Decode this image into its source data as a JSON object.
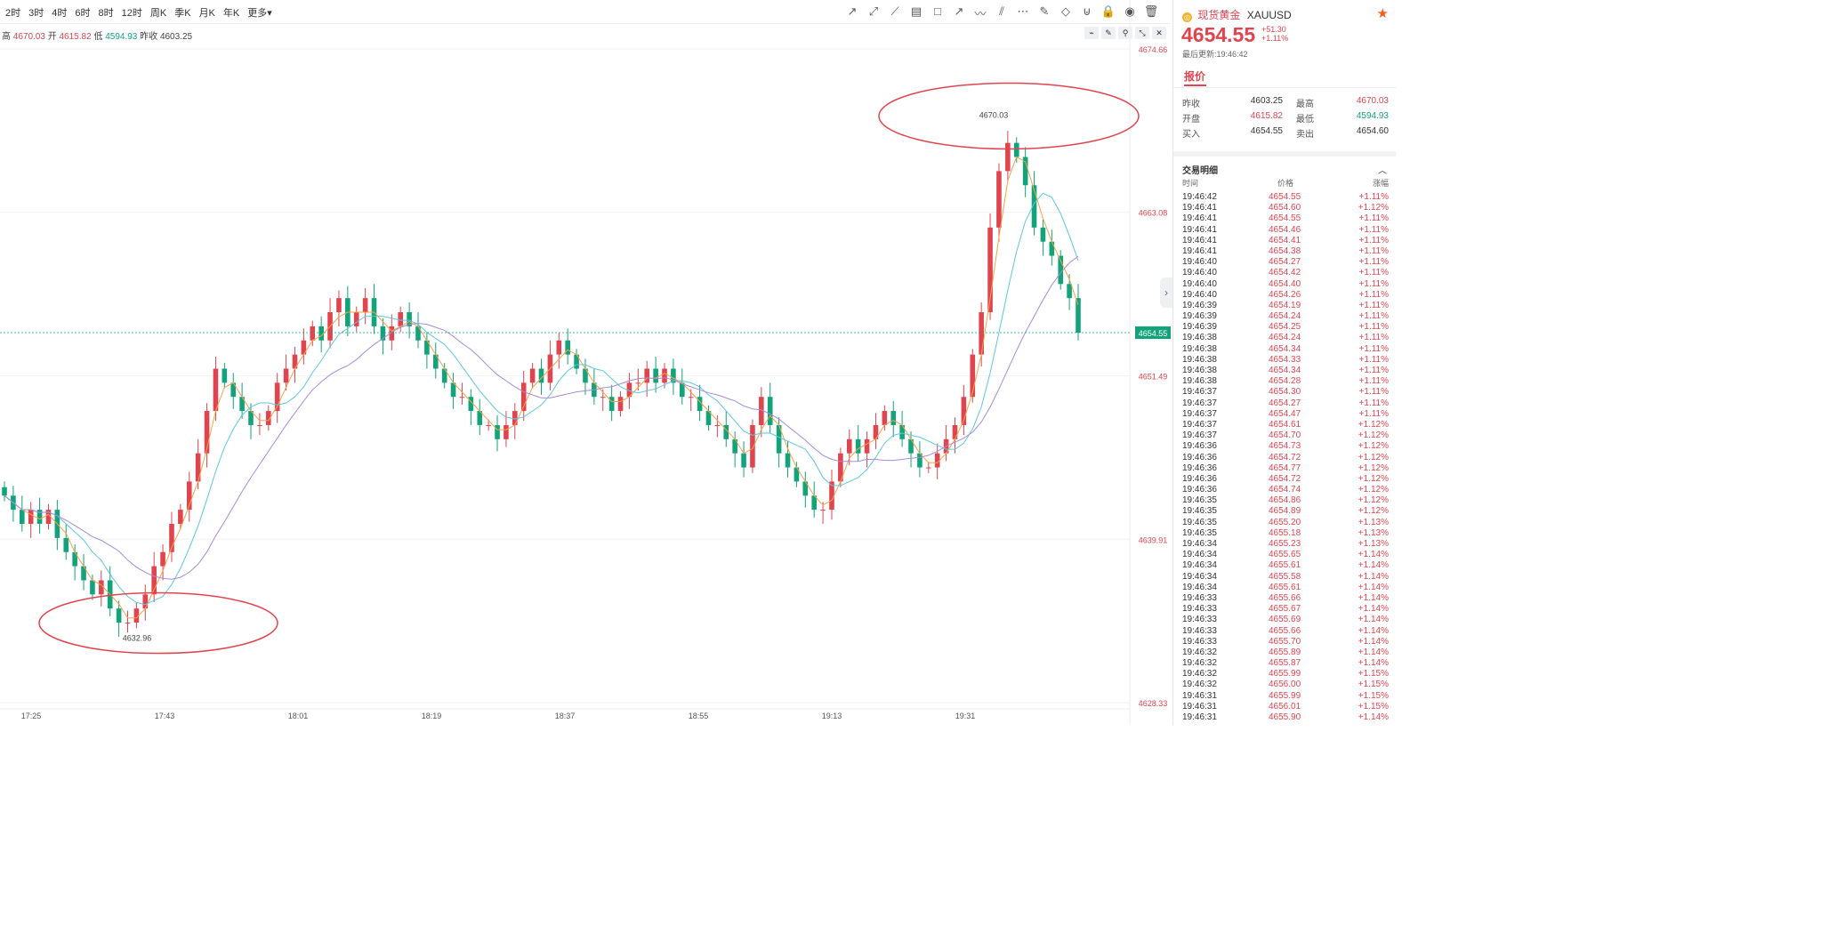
{
  "toolbar": {
    "intervals": [
      "2时",
      "3时",
      "4时",
      "6时",
      "8时",
      "12时",
      "周K",
      "季K",
      "月K",
      "年K",
      "更多▾"
    ],
    "tools": [
      "↗",
      "⤢",
      "⟋",
      "▤",
      "□",
      "↗",
      "〰",
      "⫽",
      "⋯",
      "✎",
      "◇",
      "⊍",
      "🔒",
      "◉",
      "🗑"
    ]
  },
  "ohlc": {
    "high_label": "高",
    "high": "4670.03",
    "open_label": "开",
    "open": "4615.82",
    "low_label": "低",
    "low": "4594.93",
    "prev_label": "昨收",
    "prev": "4603.25"
  },
  "chart_icons": [
    "⌁",
    "✎",
    "⚲",
    "⤡",
    "✕"
  ],
  "chart_data": {
    "type": "candlestick",
    "y_ticks": [
      "4674.66",
      "4663.08",
      "4651.49",
      "4639.91",
      "4628.33"
    ],
    "ylim": [
      4628.33,
      4674.66
    ],
    "x_ticks": [
      "17:25",
      "17:43",
      "18:01",
      "18:19",
      "18:37",
      "18:55",
      "19:13",
      "19:31"
    ],
    "current_price": "4654.55",
    "annotations": {
      "high": "4670.03",
      "low": "4632.96"
    },
    "colors": {
      "up": "#e0454f",
      "down": "#12a37b",
      "ma1": "#f3a348",
      "ma2": "#5ec6e0",
      "ma3": "#a88ad6"
    }
  },
  "panel": {
    "symbol_name": "现货黄金",
    "symbol_code": "XAUUSD",
    "price": "4654.55",
    "change": "+51.30",
    "change_pct": "+1.11%",
    "updated": "最后更新:19:46:42",
    "tab": "报价",
    "quote": [
      {
        "k1": "昨收",
        "v1": "4603.25",
        "c1": "dark",
        "k2": "最高",
        "v2": "4670.03",
        "c2": "red"
      },
      {
        "k1": "开盘",
        "v1": "4615.82",
        "c1": "red",
        "k2": "最低",
        "v2": "4594.93",
        "c2": "green"
      },
      {
        "k1": "买入",
        "v1": "4654.55",
        "c1": "dark",
        "k2": "卖出",
        "v2": "4654.60",
        "c2": "dark"
      }
    ],
    "trades_title": "交易明细",
    "trades_head": {
      "time": "时间",
      "price": "价格",
      "change": "涨幅"
    },
    "trades": [
      [
        "19:46:42",
        "4654.55",
        "+1.11%"
      ],
      [
        "19:46:41",
        "4654.60",
        "+1.12%"
      ],
      [
        "19:46:41",
        "4654.55",
        "+1.11%"
      ],
      [
        "19:46:41",
        "4654.46",
        "+1.11%"
      ],
      [
        "19:46:41",
        "4654.41",
        "+1.11%"
      ],
      [
        "19:46:41",
        "4654.38",
        "+1.11%"
      ],
      [
        "19:46:40",
        "4654.27",
        "+1.11%"
      ],
      [
        "19:46:40",
        "4654.42",
        "+1.11%"
      ],
      [
        "19:46:40",
        "4654.40",
        "+1.11%"
      ],
      [
        "19:46:40",
        "4654.26",
        "+1.11%"
      ],
      [
        "19:46:39",
        "4654.19",
        "+1.11%"
      ],
      [
        "19:46:39",
        "4654.24",
        "+1.11%"
      ],
      [
        "19:46:39",
        "4654.25",
        "+1.11%"
      ],
      [
        "19:46:38",
        "4654.24",
        "+1.11%"
      ],
      [
        "19:46:38",
        "4654.34",
        "+1.11%"
      ],
      [
        "19:46:38",
        "4654.33",
        "+1.11%"
      ],
      [
        "19:46:38",
        "4654.34",
        "+1.11%"
      ],
      [
        "19:46:38",
        "4654.28",
        "+1.11%"
      ],
      [
        "19:46:37",
        "4654.30",
        "+1.11%"
      ],
      [
        "19:46:37",
        "4654.27",
        "+1.11%"
      ],
      [
        "19:46:37",
        "4654.47",
        "+1.11%"
      ],
      [
        "19:46:37",
        "4654.61",
        "+1.12%"
      ],
      [
        "19:46:37",
        "4654.70",
        "+1.12%"
      ],
      [
        "19:46:36",
        "4654.73",
        "+1.12%"
      ],
      [
        "19:46:36",
        "4654.72",
        "+1.12%"
      ],
      [
        "19:46:36",
        "4654.77",
        "+1.12%"
      ],
      [
        "19:46:36",
        "4654.72",
        "+1.12%"
      ],
      [
        "19:46:36",
        "4654.74",
        "+1.12%"
      ],
      [
        "19:46:35",
        "4654.86",
        "+1.12%"
      ],
      [
        "19:46:35",
        "4654.89",
        "+1.12%"
      ],
      [
        "19:46:35",
        "4655.20",
        "+1.13%"
      ],
      [
        "19:46:35",
        "4655.18",
        "+1.13%"
      ],
      [
        "19:46:34",
        "4655.23",
        "+1.13%"
      ],
      [
        "19:46:34",
        "4655.65",
        "+1.14%"
      ],
      [
        "19:46:34",
        "4655.61",
        "+1.14%"
      ],
      [
        "19:46:34",
        "4655.58",
        "+1.14%"
      ],
      [
        "19:46:34",
        "4655.61",
        "+1.14%"
      ],
      [
        "19:46:33",
        "4655.66",
        "+1.14%"
      ],
      [
        "19:46:33",
        "4655.67",
        "+1.14%"
      ],
      [
        "19:46:33",
        "4655.69",
        "+1.14%"
      ],
      [
        "19:46:33",
        "4655.66",
        "+1.14%"
      ],
      [
        "19:46:33",
        "4655.70",
        "+1.14%"
      ],
      [
        "19:46:32",
        "4655.89",
        "+1.14%"
      ],
      [
        "19:46:32",
        "4655.87",
        "+1.14%"
      ],
      [
        "19:46:32",
        "4655.99",
        "+1.15%"
      ],
      [
        "19:46:32",
        "4656.00",
        "+1.15%"
      ],
      [
        "19:46:31",
        "4655.99",
        "+1.15%"
      ],
      [
        "19:46:31",
        "4656.01",
        "+1.15%"
      ],
      [
        "19:46:31",
        "4655.90",
        "+1.14%"
      ]
    ]
  }
}
